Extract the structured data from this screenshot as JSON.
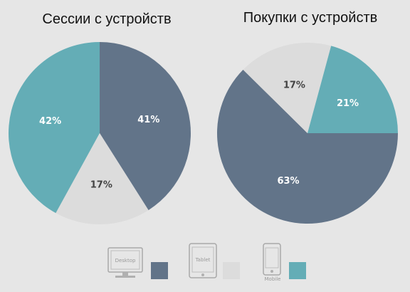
{
  "chart_data": [
    {
      "type": "pie",
      "title": "Сессии с устройств",
      "categories": [
        "Desktop",
        "Tablet",
        "Mobile"
      ],
      "values": [
        41,
        17,
        42
      ],
      "labels": [
        "41%",
        "17%",
        "42%"
      ],
      "start_angle_deg": 0,
      "colors": [
        "#627489",
        "#dcdcdc",
        "#64adb6"
      ],
      "label_colors": [
        "#ffffff",
        "#444444",
        "#ffffff"
      ]
    },
    {
      "type": "pie",
      "title": "Покупки с устройств",
      "categories": [
        "Desktop",
        "Tablet",
        "Mobile"
      ],
      "values": [
        63,
        17,
        21
      ],
      "labels": [
        "63%",
        "17%",
        "21%"
      ],
      "start_angle_deg": 90,
      "colors": [
        "#627489",
        "#dcdcdc",
        "#64adb6"
      ],
      "label_colors": [
        "#ffffff",
        "#444444",
        "#ffffff"
      ]
    }
  ],
  "legend": {
    "items": [
      {
        "device": "Desktop",
        "icon": "desktop-monitor-icon",
        "color": "#627489"
      },
      {
        "device": "Tablet",
        "icon": "tablet-icon",
        "color": "#dcdcdc"
      },
      {
        "device": "Mobile",
        "icon": "mobile-phone-icon",
        "color": "#64adb6"
      }
    ]
  }
}
